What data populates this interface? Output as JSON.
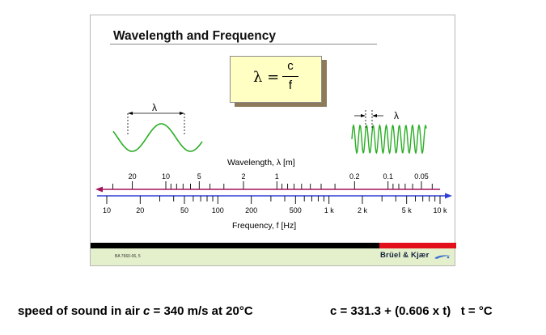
{
  "slide": {
    "title": "Wavelength and Frequency",
    "formula": {
      "lhs": "λ =",
      "numerator": "c",
      "denominator": "f"
    },
    "footer": {
      "doc_code": "BA 7660-06, 5",
      "brand": "Brüel & Kjær",
      "accent_black": "#000000",
      "accent_red": "#e30f1b",
      "strip_color": "#e4efcb"
    }
  },
  "diagram": {
    "lambda_symbol": "λ",
    "wave_color": "#2aad24",
    "wavelength_axis": {
      "label": "Wavelength, λ [m]",
      "color": "#a0155a",
      "tick_labels": [
        "20",
        "10",
        "5",
        "2",
        "1",
        "0.2",
        "0.1",
        "0.05"
      ]
    },
    "frequency_axis": {
      "label": "Frequency, f [Hz]",
      "color": "#2f3fd6",
      "tick_labels": [
        "10",
        "20",
        "50",
        "100",
        "200",
        "500",
        "1 k",
        "2 k",
        "5 k",
        "10 k"
      ]
    }
  },
  "captions": {
    "left": {
      "prefix": "speed of sound in air ",
      "symbol": "c",
      "suffix": " = 340 m/s at 20°C"
    },
    "right": "c = 331.3 + (0.606 x t)   t = °C"
  }
}
